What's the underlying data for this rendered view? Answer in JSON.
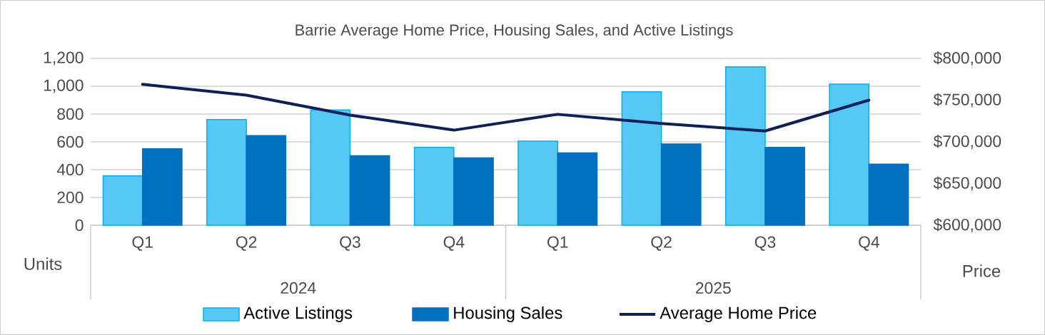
{
  "chart_data": {
    "type": "bar",
    "title": "Barrie Average Home Price, Housing Sales, and Active Listings",
    "categories": [
      "Q1",
      "Q2",
      "Q3",
      "Q4",
      "Q1",
      "Q2",
      "Q3",
      "Q4"
    ],
    "annotations": [
      "2024",
      "2025"
    ],
    "ylabel": "Units",
    "y2label": "Price",
    "ylim": [
      0,
      1200
    ],
    "yticks": [
      0,
      200,
      400,
      600,
      800,
      {
        "value": 1000,
        "label": "1,000"
      },
      {
        "value": 1200,
        "label": "1,200"
      }
    ],
    "y2lim": [
      600000,
      800000
    ],
    "y2ticks": [
      {
        "value": 600000,
        "label": "$600,000"
      },
      {
        "value": 650000,
        "label": "$650,000"
      },
      {
        "value": 700000,
        "label": "$700,000"
      },
      {
        "value": 750000,
        "label": "$750,000"
      },
      {
        "value": 800000,
        "label": "$800,000"
      }
    ],
    "grid": "y",
    "legend": "bottom",
    "series": [
      {
        "name": "Active Listings",
        "color": "#56c8f5",
        "values": [
          355,
          760,
          830,
          560,
          605,
          960,
          1140,
          1015
        ]
      },
      {
        "name": "Housing Sales",
        "color": "#0070c0",
        "values": [
          550,
          645,
          500,
          485,
          520,
          585,
          560,
          440
        ]
      },
      {
        "name": "Average Home Price",
        "type": "line",
        "axis": "y2",
        "color": "#0e1f5b",
        "values": [
          769000,
          756000,
          732000,
          714000,
          733000,
          722000,
          713000,
          750000
        ]
      }
    ]
  }
}
